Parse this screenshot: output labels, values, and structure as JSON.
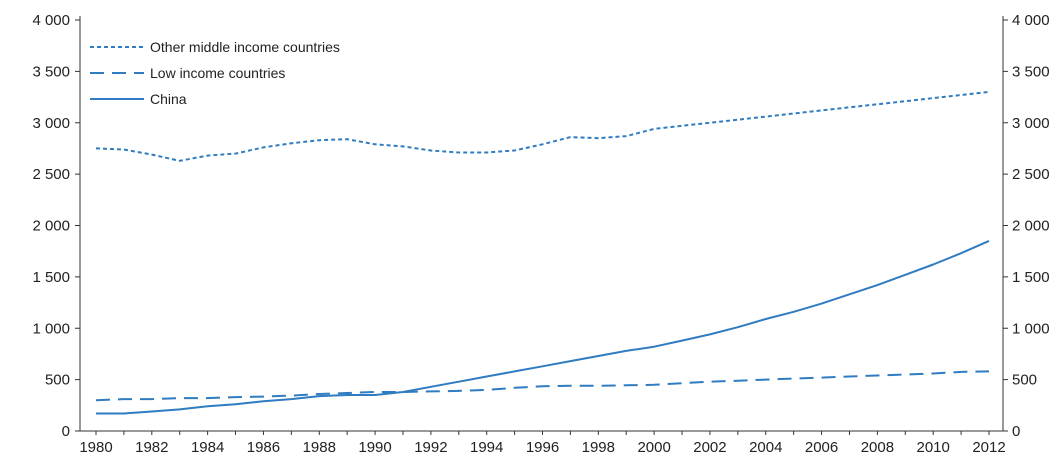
{
  "header_fragment": "",
  "chart_data": {
    "type": "line",
    "title": "",
    "xlabel": "",
    "ylabel": "",
    "x": [
      1980,
      1981,
      1982,
      1983,
      1984,
      1985,
      1986,
      1987,
      1988,
      1989,
      1990,
      1991,
      1992,
      1993,
      1994,
      1995,
      1996,
      1997,
      1998,
      1999,
      2000,
      2001,
      2002,
      2003,
      2004,
      2005,
      2006,
      2007,
      2008,
      2009,
      2010,
      2011,
      2012
    ],
    "x_tick_labels": [
      "1980",
      "1982",
      "1984",
      "1986",
      "1988",
      "1990",
      "1992",
      "1994",
      "1996",
      "1998",
      "2000",
      "2002",
      "2004",
      "2006",
      "2008",
      "2010",
      "2012"
    ],
    "y_tick_labels": [
      "0",
      "500",
      "1 000",
      "1 500",
      "2 000",
      "2 500",
      "3 000",
      "3 500",
      "4 000"
    ],
    "y_tick_values": [
      0,
      500,
      1000,
      1500,
      2000,
      2500,
      3000,
      3500,
      4000
    ],
    "ylim": [
      0,
      4000
    ],
    "secondary_axis": "right, same scale",
    "grid": false,
    "legend_position": "top-left",
    "color": "#2f7cc1",
    "series": [
      {
        "name": "Other middle income countries",
        "style": "dotted",
        "values": [
          2750,
          2740,
          2690,
          2630,
          2680,
          2700,
          2760,
          2800,
          2830,
          2840,
          2790,
          2770,
          2730,
          2710,
          2710,
          2730,
          2790,
          2860,
          2850,
          2870,
          2940,
          2970,
          3000,
          3030,
          3060,
          3090,
          3120,
          3150,
          3180,
          3210,
          3240,
          3270,
          3300
        ]
      },
      {
        "name": "Low income countries",
        "style": "dashed",
        "values": [
          300,
          310,
          310,
          320,
          320,
          330,
          335,
          345,
          360,
          370,
          380,
          380,
          385,
          390,
          400,
          420,
          435,
          440,
          440,
          445,
          450,
          465,
          480,
          490,
          500,
          510,
          520,
          530,
          540,
          550,
          560,
          575,
          580
        ]
      },
      {
        "name": "China",
        "style": "solid",
        "values": [
          170,
          170,
          190,
          210,
          240,
          260,
          290,
          310,
          340,
          350,
          350,
          380,
          430,
          480,
          530,
          580,
          630,
          680,
          730,
          780,
          820,
          880,
          940,
          1010,
          1090,
          1160,
          1240,
          1330,
          1420,
          1520,
          1620,
          1730,
          1850
        ]
      }
    ]
  }
}
